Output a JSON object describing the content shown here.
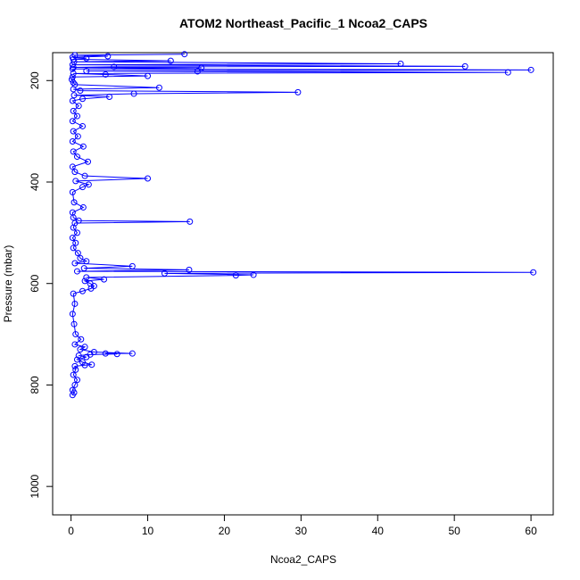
{
  "chart_data": {
    "type": "line",
    "title": "ATOM2 Northeast_Pacific_1 Ncoa2_CAPS",
    "x_label": "Ncoa2_CAPS",
    "y_label": "Pressure (mbar)",
    "xlim": [
      -2.4,
      62.9
    ],
    "ylim": [
      1056,
      145
    ],
    "xticks": [
      0,
      10,
      20,
      30,
      40,
      50,
      60
    ],
    "yticks": [
      200,
      400,
      600,
      800,
      1000
    ],
    "series": [
      {
        "color": "#0000ff",
        "y": [
          148,
          150,
          152,
          154,
          156,
          158,
          161,
          163,
          167,
          169,
          172,
          173,
          174,
          175,
          177,
          179,
          181,
          182,
          184,
          186,
          188,
          191,
          193,
          198,
          204,
          208,
          214,
          217,
          220,
          223,
          226,
          229,
          232,
          236,
          240,
          250,
          260,
          270,
          280,
          290,
          300,
          310,
          320,
          330,
          340,
          350,
          360,
          370,
          380,
          388,
          393,
          398,
          405,
          410,
          420,
          440,
          450,
          460,
          470,
          476,
          478,
          481,
          490,
          500,
          510,
          520,
          530,
          540,
          550,
          556,
          560,
          566,
          570,
          573,
          576,
          578,
          580,
          583,
          584,
          588,
          592,
          595,
          600,
          605,
          610,
          615,
          620,
          640,
          660,
          680,
          700,
          710,
          720,
          725,
          730,
          735,
          738,
          738,
          739,
          740,
          742,
          745,
          750,
          755,
          760,
          761,
          763,
          770,
          780,
          790,
          800,
          810,
          815,
          820
        ],
        "x": [
          14.8,
          0.5,
          4.8,
          0.2,
          2,
          0.3,
          13,
          0.4,
          43,
          0.2,
          51.4,
          5.6,
          0.3,
          17,
          0.2,
          60,
          2,
          16.5,
          57,
          0.3,
          4.5,
          10,
          0.2,
          0.1,
          0.3,
          0.5,
          11.5,
          0.3,
          1.2,
          29.6,
          8.2,
          0.4,
          5,
          1.5,
          0.2,
          1,
          0.3,
          0.8,
          0.2,
          1.5,
          0.3,
          0.9,
          0.2,
          1.6,
          0.3,
          0.8,
          2.2,
          0.2,
          0.5,
          1.8,
          10,
          0.6,
          2.3,
          1.5,
          0.2,
          0.4,
          1.6,
          0.2,
          0.3,
          1,
          15.5,
          0.5,
          0.3,
          0.8,
          0.2,
          0.6,
          0.3,
          0.9,
          1.2,
          2,
          0.5,
          8,
          1.7,
          15.4,
          0.8,
          60.3,
          12.2,
          23.8,
          21.5,
          2,
          4.3,
          1.8,
          2.5,
          3,
          2.6,
          1.5,
          0.3,
          0.5,
          0.2,
          0.4,
          0.6,
          1.3,
          0.5,
          1.8,
          1.2,
          3,
          8,
          4.5,
          6,
          2.5,
          1,
          2,
          0.8,
          1.5,
          2.7,
          1.8,
          0.5,
          0.6,
          0.3,
          0.8,
          0.5,
          0.2,
          0.4,
          0.2
        ]
      }
    ]
  }
}
